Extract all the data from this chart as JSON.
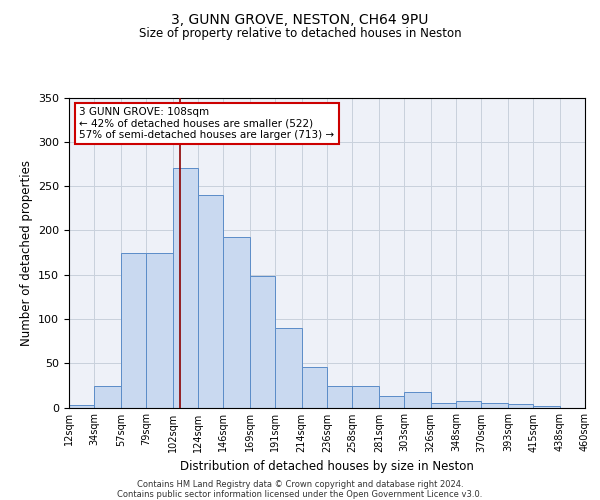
{
  "title1": "3, GUNN GROVE, NESTON, CH64 9PU",
  "title2": "Size of property relative to detached houses in Neston",
  "xlabel": "Distribution of detached houses by size in Neston",
  "ylabel": "Number of detached properties",
  "bin_edges": [
    12,
    34,
    57,
    79,
    102,
    124,
    146,
    169,
    191,
    214,
    236,
    258,
    281,
    303,
    326,
    348,
    370,
    393,
    415,
    438,
    460
  ],
  "bar_heights": [
    3,
    24,
    175,
    175,
    270,
    240,
    192,
    148,
    90,
    46,
    24,
    24,
    13,
    17,
    5,
    7,
    5,
    4,
    2,
    0
  ],
  "bar_color": "#c9d9f0",
  "bar_edgecolor": "#5b8cc8",
  "grid_color": "#c8d0dc",
  "bg_color": "#eef1f8",
  "red_line_x": 108,
  "annotation_line1": "3 GUNN GROVE: 108sqm",
  "annotation_line2": "← 42% of detached houses are smaller (522)",
  "annotation_line3": "57% of semi-detached houses are larger (713) →",
  "annotation_box_color": "#ffffff",
  "annotation_border_color": "#cc0000",
  "ylim": [
    0,
    350
  ],
  "yticks": [
    0,
    50,
    100,
    150,
    200,
    250,
    300,
    350
  ],
  "footer1": "Contains HM Land Registry data © Crown copyright and database right 2024.",
  "footer2": "Contains public sector information licensed under the Open Government Licence v3.0."
}
